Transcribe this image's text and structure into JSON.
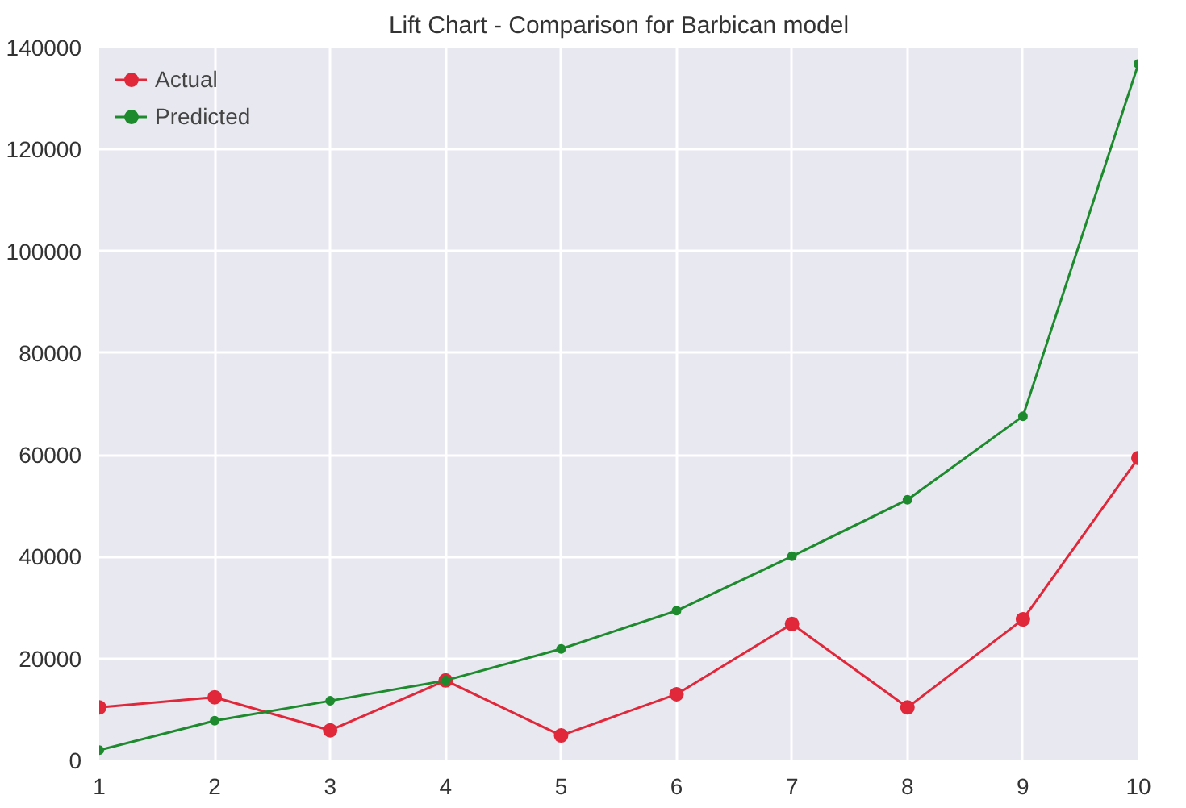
{
  "chart_data": {
    "type": "line",
    "title": "Lift Chart - Comparison for Barbican model",
    "x": [
      1,
      2,
      3,
      4,
      5,
      6,
      7,
      8,
      9,
      10
    ],
    "series": [
      {
        "name": "Actual",
        "color": "#e0283a",
        "values": [
          10400,
          12400,
          5900,
          15700,
          4900,
          13000,
          26800,
          10400,
          27700,
          59400
        ]
      },
      {
        "name": "Predicted",
        "color": "#1e8a2e",
        "values": [
          2000,
          7800,
          11700,
          15700,
          21900,
          29400,
          40100,
          51200,
          67600,
          136800
        ]
      }
    ],
    "xlim": [
      1,
      10
    ],
    "xticks": [
      1,
      2,
      3,
      4,
      5,
      6,
      7,
      8,
      9,
      10
    ],
    "ylim": [
      0,
      140000
    ],
    "yticks": [
      0,
      20000,
      40000,
      60000,
      80000,
      100000,
      120000,
      140000
    ],
    "grid": true,
    "legend": "top left",
    "marker": "circle",
    "line_style": "solid"
  }
}
